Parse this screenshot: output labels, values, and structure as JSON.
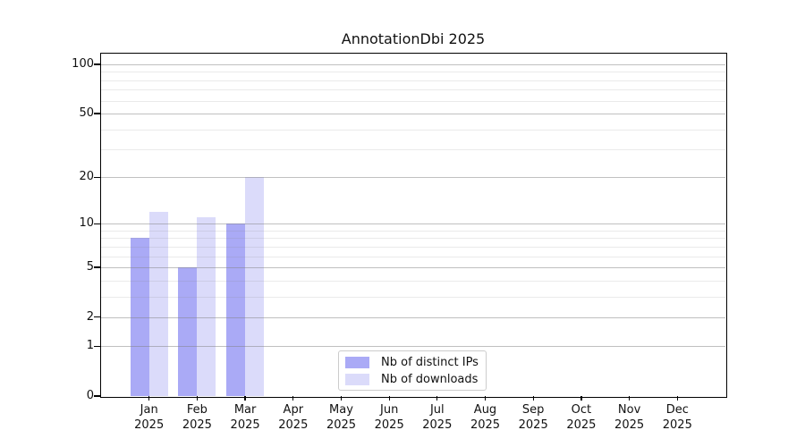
{
  "title": "AnnotationDbi 2025",
  "chart_data": {
    "type": "bar",
    "title": "AnnotationDbi 2025",
    "categories": [
      "Jan 2025",
      "Feb 2025",
      "Mar 2025",
      "Apr 2025",
      "May 2025",
      "Jun 2025",
      "Jul 2025",
      "Aug 2025",
      "Sep 2025",
      "Oct 2025",
      "Nov 2025",
      "Dec 2025"
    ],
    "series": [
      {
        "name": "Nb of distinct IPs",
        "color": "#aaaaf6",
        "values": [
          8,
          5,
          10,
          0,
          0,
          0,
          0,
          0,
          0,
          0,
          0,
          0
        ]
      },
      {
        "name": "Nb of downloads",
        "color": "#dbdbfa",
        "values": [
          12,
          11,
          20,
          0,
          0,
          0,
          0,
          0,
          0,
          0,
          0,
          0
        ]
      }
    ],
    "yscale": "log10(1+x)",
    "ylim": [
      0,
      100
    ],
    "yticks": [
      0,
      1,
      2,
      5,
      10,
      20,
      50,
      100
    ],
    "minor_yticks": [
      3,
      4,
      6,
      7,
      8,
      9,
      30,
      40,
      60,
      70,
      80,
      90
    ],
    "xlabel": "",
    "ylabel": "",
    "grid": "horizontal",
    "legend_position": "lower center"
  },
  "colors": {
    "background": "#ffffff",
    "axis": "#000000",
    "major_grid": "rgba(130,130,130,0.5)",
    "minor_grid": "rgba(130,130,130,0.17)",
    "text": "#111111",
    "legend_border": "#cccccc"
  }
}
